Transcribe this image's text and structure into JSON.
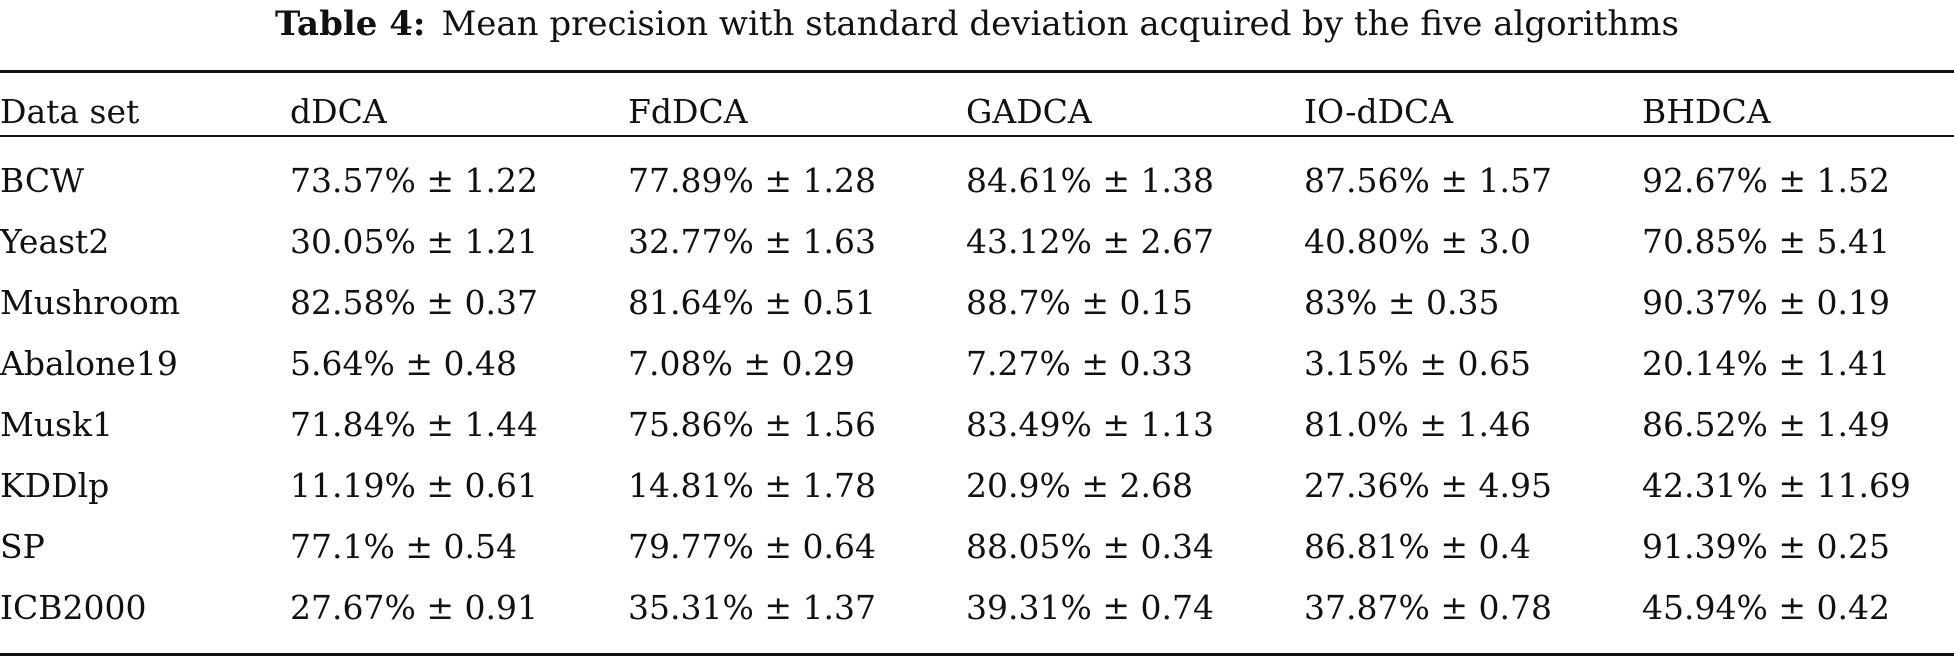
{
  "caption": {
    "label": "Table 4:",
    "text": "Mean precision with standard deviation acquired by the five algorithms"
  },
  "headers": [
    "Data set",
    "dDCA",
    "FdDCA",
    "GADCA",
    "IO-dDCA",
    "BHDCA"
  ],
  "rows": [
    {
      "dataset": "BCW",
      "values": [
        "73.57% ± 1.22",
        "77.89% ± 1.28",
        "84.61% ± 1.38",
        "87.56% ± 1.57",
        "92.67% ± 1.52"
      ]
    },
    {
      "dataset": "Yeast2",
      "values": [
        "30.05% ± 1.21",
        "32.77% ± 1.63",
        "43.12% ± 2.67",
        "40.80% ± 3.0",
        "70.85% ± 5.41"
      ]
    },
    {
      "dataset": "Mushroom",
      "values": [
        "82.58% ± 0.37",
        "81.64% ± 0.51",
        "88.7% ± 0.15",
        "83% ± 0.35",
        "90.37% ± 0.19"
      ]
    },
    {
      "dataset": "Abalone19",
      "values": [
        "5.64% ± 0.48",
        "7.08% ± 0.29",
        "7.27% ± 0.33",
        "3.15% ± 0.65",
        "20.14% ± 1.41"
      ]
    },
    {
      "dataset": "Musk1",
      "values": [
        "71.84% ± 1.44",
        "75.86% ± 1.56",
        "83.49% ± 1.13",
        "81.0% ± 1.46",
        "86.52% ± 1.49"
      ]
    },
    {
      "dataset": "KDDlp",
      "values": [
        "11.19% ± 0.61",
        "14.81% ± 1.78",
        "20.9% ± 2.68",
        "27.36% ± 4.95",
        "42.31% ± 11.69"
      ]
    },
    {
      "dataset": "SP",
      "values": [
        "77.1% ± 0.54",
        "79.77% ± 0.64",
        "88.05% ± 0.34",
        "86.81% ± 0.4",
        "91.39% ± 0.25"
      ]
    },
    {
      "dataset": "ICB2000",
      "values": [
        "27.67% ± 0.91",
        "35.31% ± 1.37",
        "39.31% ± 0.74",
        "37.87% ± 0.78",
        "45.94% ± 0.42"
      ]
    }
  ],
  "best_column_index": 4
}
